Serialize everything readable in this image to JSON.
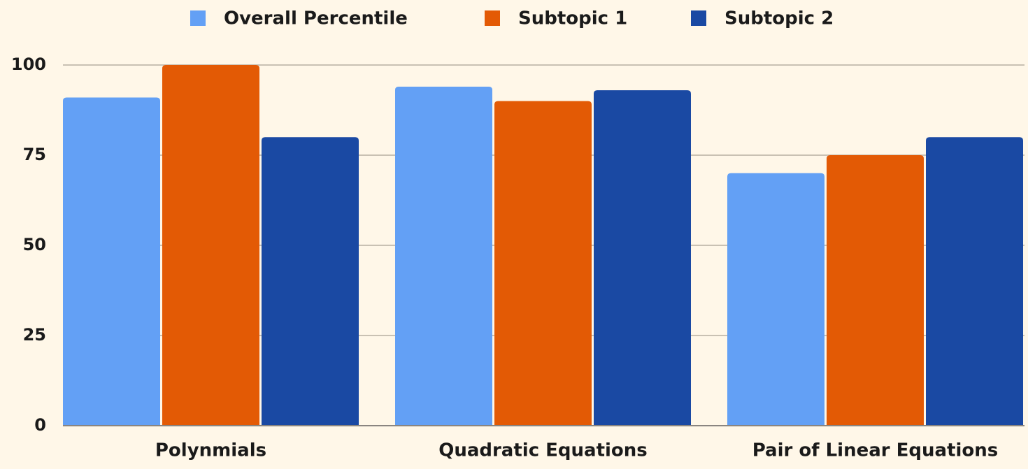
{
  "chart_data": {
    "type": "bar",
    "categories": [
      "Polynmials",
      "Quadratic Equations",
      "Pair of Linear Equations"
    ],
    "series": [
      {
        "name": "Overall Percentile",
        "color": "#63a0f5",
        "values": [
          91,
          94,
          70
        ]
      },
      {
        "name": "Subtopic 1",
        "color": "#e35a05",
        "values": [
          100,
          90,
          75
        ]
      },
      {
        "name": "Subtopic 2",
        "color": "#1a49a3",
        "values": [
          80,
          93,
          80
        ]
      }
    ],
    "ylim": [
      0,
      100
    ],
    "yticks": [
      0,
      25,
      50,
      75,
      100
    ],
    "grid": true,
    "legend": "top"
  }
}
